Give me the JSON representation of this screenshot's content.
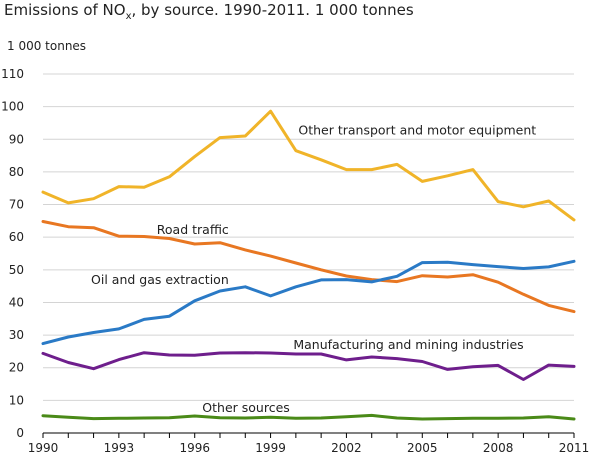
{
  "title": {
    "prefix": "Emissions of NO",
    "subscript": "x",
    "suffix": ", by source. 1990-2011. 1 000 tonnes"
  },
  "chart_data": {
    "type": "line",
    "title": "Emissions of NOx, by source. 1990-2011. 1 000 tonnes",
    "ylabel": "1 000 tonnes",
    "xlabel": "",
    "x": [
      1990,
      1991,
      1992,
      1993,
      1994,
      1995,
      1996,
      1997,
      1998,
      1999,
      2000,
      2001,
      2002,
      2003,
      2004,
      2005,
      2006,
      2007,
      2008,
      2009,
      2010,
      2011
    ],
    "xlim": [
      1990,
      2011
    ],
    "ylim": [
      0,
      110
    ],
    "xticks": [
      "1990",
      "1993",
      "1996",
      "1999",
      "2002",
      "2005",
      "2008",
      "2011"
    ],
    "yticks": [
      "0",
      "10",
      "20",
      "30",
      "40",
      "50",
      "60",
      "70",
      "80",
      "90",
      "100",
      "110"
    ],
    "grid": true,
    "series": [
      {
        "name": "Other transport and motor equipment",
        "color": "#f0b429",
        "values": [
          73.8,
          70.5,
          71.8,
          75.5,
          75.3,
          78.5,
          84.7,
          90.5,
          91.0,
          98.6,
          86.5,
          83.7,
          80.7,
          80.7,
          82.3,
          77.1,
          78.8,
          80.7,
          70.9,
          69.3,
          71.1,
          65.3
        ]
      },
      {
        "name": "Road traffic",
        "color": "#e87722",
        "values": [
          64.8,
          63.2,
          62.9,
          60.3,
          60.2,
          59.6,
          57.9,
          58.3,
          56.1,
          54.2,
          52.1,
          50.0,
          48.1,
          47.0,
          46.4,
          48.2,
          47.8,
          48.5,
          46.2,
          42.5,
          39.1,
          37.2
        ]
      },
      {
        "name": "Oil and gas extraction",
        "color": "#2a7ac6",
        "values": [
          27.4,
          29.4,
          30.8,
          31.9,
          34.8,
          35.8,
          40.5,
          43.5,
          44.8,
          42.0,
          44.8,
          46.9,
          47.0,
          46.3,
          48.0,
          52.2,
          52.3,
          51.6,
          51.0,
          50.4,
          50.9,
          52.6
        ]
      },
      {
        "name": "Manufacturing and mining industries",
        "color": "#6e1e8c",
        "values": [
          24.4,
          21.6,
          19.7,
          22.5,
          24.6,
          23.9,
          23.8,
          24.5,
          24.6,
          24.5,
          24.2,
          24.2,
          22.4,
          23.3,
          22.8,
          21.9,
          19.5,
          20.3,
          20.7,
          16.4,
          20.8,
          20.4
        ]
      },
      {
        "name": "Other sources",
        "color": "#4a8a18",
        "values": [
          5.3,
          4.8,
          4.4,
          4.5,
          4.6,
          4.7,
          5.2,
          4.7,
          4.6,
          4.8,
          4.5,
          4.6,
          5.0,
          5.4,
          4.6,
          4.3,
          4.4,
          4.5,
          4.5,
          4.6,
          5.0,
          4.3
        ]
      }
    ]
  }
}
